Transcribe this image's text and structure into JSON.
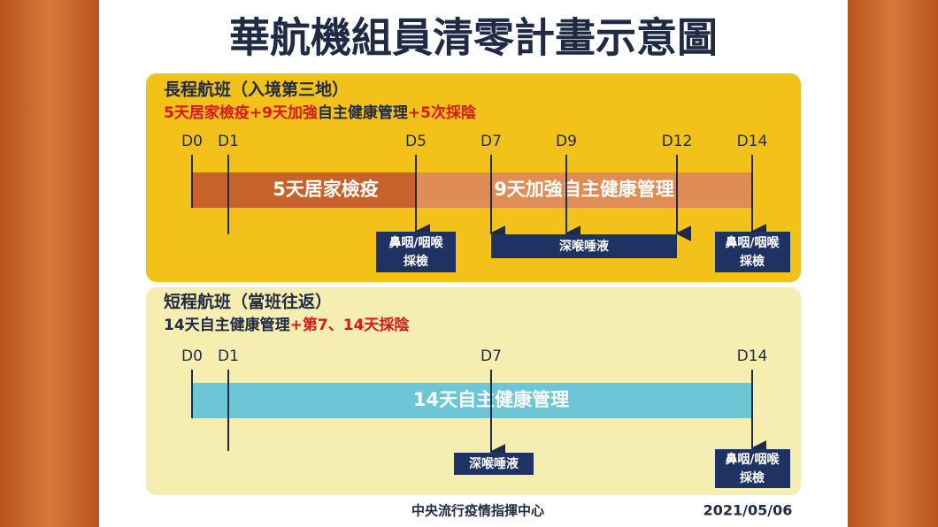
{
  "title": "華航機組員清零計畫示意圖",
  "panels": [
    {
      "heading": "長程航班（入境第三地）",
      "subtitle": [
        "5天居家檢疫",
        "+9天加強",
        "自主健康管理",
        "+5次採陰"
      ],
      "days": [
        "D0",
        "D1",
        "D5",
        "D7",
        "D9",
        "D12",
        "D14"
      ],
      "bars": [
        "5天居家檢疫",
        "9天加強自主健康管理"
      ],
      "tests": [
        [
          "鼻咽/咽喉",
          "採檢"
        ],
        [
          "深喉唾液"
        ],
        [
          "鼻咽/咽喉",
          "採檢"
        ]
      ]
    },
    {
      "heading": "短程航班（當班往返）",
      "subtitle": [
        "14天自主健康管理",
        "+第7、14天採陰"
      ],
      "days": [
        "D0",
        "D1",
        "D7",
        "D14"
      ],
      "bars": [
        "14天自主健康管理"
      ],
      "tests": [
        [
          "深喉唾液"
        ],
        [
          "鼻咽/咽喉",
          "採檢"
        ]
      ]
    }
  ],
  "footer": {
    "source": "中央流行疫情指揮中心",
    "date": "2021/05/06"
  }
}
